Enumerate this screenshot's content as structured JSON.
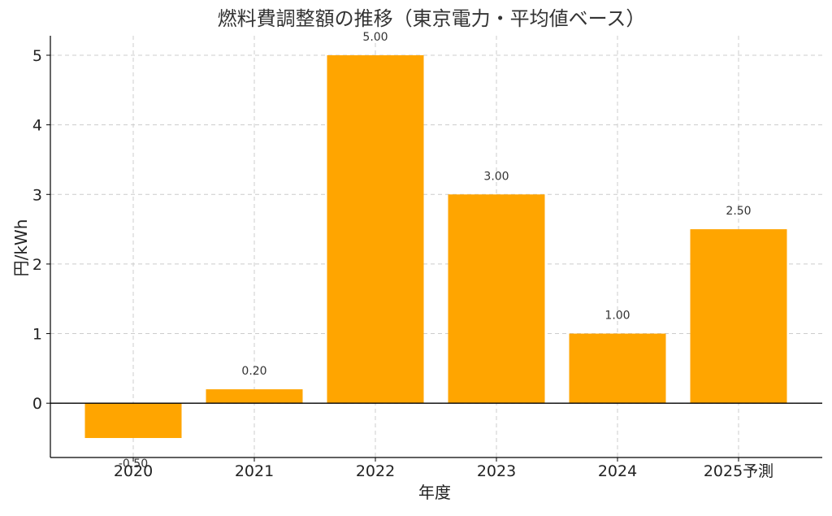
{
  "chart_data": {
    "type": "bar",
    "title": "燃料費調整額の推移（東京電力・平均値ベース）",
    "xlabel": "年度",
    "ylabel": "円/kWh",
    "categories": [
      "2020",
      "2021",
      "2022",
      "2023",
      "2024",
      "2025予測"
    ],
    "values": [
      -0.5,
      0.2,
      5.0,
      3.0,
      1.0,
      2.5
    ],
    "data_labels": [
      "-0.50",
      "0.20",
      "5.00",
      "3.00",
      "1.00",
      "2.50"
    ],
    "yticks": [
      0,
      1,
      2,
      3,
      4,
      5
    ],
    "ylim": [
      -0.78,
      5.28
    ],
    "grid": true,
    "bar_color": "#FFA500"
  }
}
